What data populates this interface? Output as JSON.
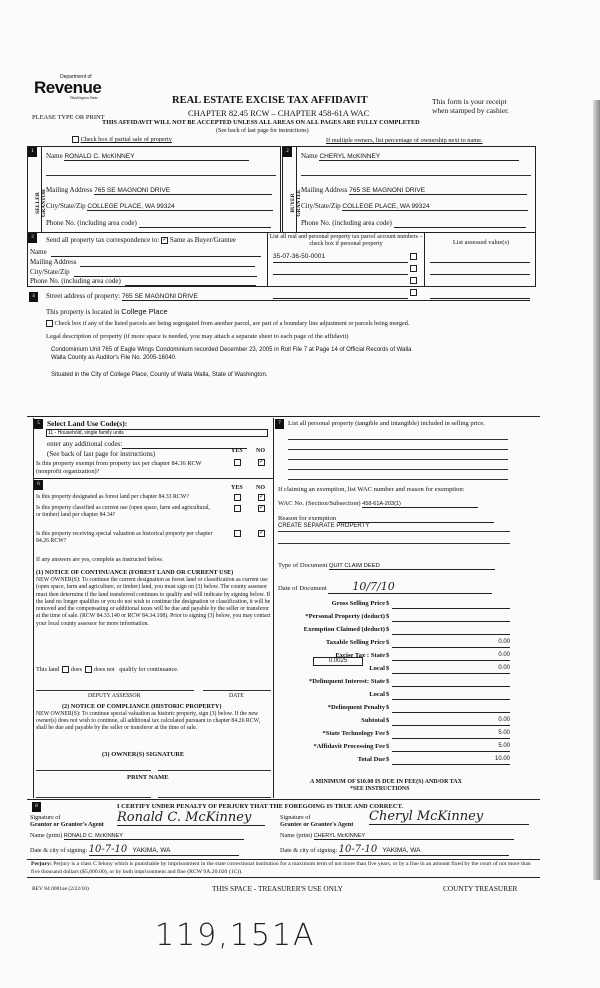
{
  "header": {
    "logo_top": "Department of",
    "logo_main": "Revenue",
    "logo_sub": "Washington State",
    "type_or_print": "PLEASE TYPE OR PRINT",
    "title": "REAL ESTATE EXCISE TAX AFFIDAVIT",
    "chapter": "CHAPTER 82.45 RCW – CHAPTER 458-61A WAC",
    "warning": "THIS AFFIDAVIT WILL NOT BE ACCEPTED UNLESS ALL AREAS ON ALL PAGES ARE FULLY COMPLETED",
    "see_back": "(See back of last page for instructions)",
    "receipt_1": "This form is your receipt",
    "receipt_2": "when stamped by cashier.",
    "partial_sale": "Check box if partial sale of property",
    "multiple_owners": "If multiple owners, list percentage of ownership next to name."
  },
  "seller": {
    "num": "1",
    "side": "SELLER GRANTOR",
    "name_label": "Name",
    "name": "RONALD C. McKINNEY",
    "mail_label": "Mailing Address",
    "mail": "765 SE MAGNONI DRIVE",
    "city_label": "City/State/Zip",
    "city": "COLLEGE PLACE, WA  99324",
    "phone_label": "Phone No. (including area code)"
  },
  "buyer": {
    "num": "2",
    "side": "BUYER GRANTEE",
    "name_label": "Name",
    "name": "CHERYL McKINNEY",
    "mail_label": "Mailing Address",
    "mail": "765 SE MAGNONI DRIVE",
    "city_label": "City/State/Zip",
    "city": "COLLEGE PLACE, WA  99324",
    "phone_label": "Phone No. (including area code)"
  },
  "section3": {
    "num": "3",
    "send_label": "Send all property tax correspondence to:",
    "same_label": "Same as Buyer/Grantee",
    "same_checked": true,
    "name_label": "Name",
    "mail_label": "Mailing Address",
    "city_label": "City/State/Zip",
    "phone_label": "Phone No. (including area code)",
    "parcel_header": "List all real and personal property tax parcel account numbers – check box if personal property",
    "assessed_header": "List assessed value(s)",
    "parcels": [
      "35-07-36-50-0001",
      "",
      "",
      ""
    ]
  },
  "section4": {
    "num": "4",
    "street_label": "Street address of property:",
    "street": "765 SE MAGNONI DRIVE",
    "located_label": "This property is located in",
    "located": "College Place",
    "segregated": "Check box if any of the listed parcels are being segregated from another parcel, are part of a boundary line adjustment or parcels being merged.",
    "legal_label": "Legal description of property (if more space is needed, you may attach a separate sheet to each page of the affidavit)",
    "legal_1": "Condominium Unit 765 of Eagle Wings Condominium recorded December 23, 2005 in Roll File 7 at Page 14 of Official Records of Walla",
    "legal_2": "Walla County as Auditor's File No. 2005-16040.",
    "legal_3": "Situated in the City of College Place, County of Walla Walla, State of Washington."
  },
  "section5": {
    "num": "5",
    "land_use_label": "Select Land Use Code(s):",
    "land_use": "11 - Household, single family units",
    "additional": "enter any additional codes:",
    "see_back": "(See back of last page for instructions)",
    "yes": "YES",
    "no": "NO",
    "exempt_q": "Is this property exempt from property tax per chapter 84.36 RCW (nonprofit organization)?",
    "exempt_no": true
  },
  "section6": {
    "num": "6",
    "yes": "YES",
    "no": "NO",
    "questions": [
      {
        "q": "Is this property designated as forest land per chapter 84.33 RCW?",
        "no": true
      },
      {
        "q": "Is this property classified as current use (open space, farm and agricultural, or timber) land per chapter 84.34?",
        "no": true
      },
      {
        "q": "Is this property receiving special valuation as historical property per chapter 84.26 RCW?",
        "no": true
      }
    ],
    "if_yes": "If any answers are yes, complete as instructed below.",
    "notice1_title": "(1) NOTICE OF CONTINUANCE  (FOREST LAND OR CURRENT USE)",
    "notice1_text": "NEW OWNER(S): To continue the current designation as forest land or classification as current use (open space, farm and agriculture, or timber) land, you must sign on (3) below. The county assessor must then determine if the land transferred continues to qualify and will indicate by signing below. If the land no longer qualifies or you do not wish to continue the designation or classification, it will be removed and the compensating or additional taxes will be due and payable by the seller or transferor at the time of sale. (RCW 84.33.140 or RCW 84.34.108). Prior to signing (3) below, you may contact your local county assessor for more information.",
    "this_land": "This land",
    "does": "does",
    "does_not": "does not",
    "qualify": "qualify for continuance.",
    "deputy": "DEPUTY ASSESSOR",
    "date": "DATE",
    "notice2_title": "(2) NOTICE OF COMPLIANCE (HISTORIC PROPERTY)",
    "notice2_text": "NEW OWNER(S): To continue special valuation as historic property, sign (3) below. If the new owner(s) does not wish to continue, all additional tax calculated pursuant to chapter 84.26 RCW, shall be due and payable by the seller or transferor at the time of sale.",
    "owner_sig": "(3)  OWNER(S) SIGNATURE",
    "print_name": "PRINT NAME"
  },
  "section7": {
    "num": "7",
    "personal_label": "List all  personal property (tangible and intangible) included in selling price.",
    "exemption_label": "If claiming an exemption, list WAC number and reason for exemption:",
    "wac_label": "WAC No. (Section/Subsection)",
    "wac": "458-61A-203(1)",
    "reason_label": "Reason for exemption",
    "reason": "CREATE SEPARATE PROPERTY",
    "doc_type_label": "Type of Document",
    "doc_type": "QUIT CLAIM DEED",
    "doc_date_label": "Date of Document",
    "doc_date": "10/7/10",
    "local_rate": "0.0025",
    "amounts": [
      {
        "label": "Gross Selling Price",
        "value": ""
      },
      {
        "label": "*Personal Property (deduct)",
        "value": ""
      },
      {
        "label": "Exemption Claimed (deduct)",
        "value": ""
      },
      {
        "label": "Taxable Selling Price",
        "value": "0.00"
      },
      {
        "label": "Excise Tax : State",
        "value": "0.00"
      },
      {
        "label": "Local",
        "value": "0.00"
      },
      {
        "label": "*Delinquent Interest: State",
        "value": ""
      },
      {
        "label": "Local",
        "value": ""
      },
      {
        "label": "*Delinquent Penalty",
        "value": ""
      },
      {
        "label": "Subtotal",
        "value": "0.00"
      },
      {
        "label": "*State Technology Fee",
        "value": "5.00"
      },
      {
        "label": "*Affidavit Processing Fee",
        "value": "5.00"
      },
      {
        "label": "Total Due",
        "value": "10.00"
      }
    ],
    "currency": "$",
    "minimum": "A MINIMUM OF $10.00 IS DUE IN FEE(S) AND/OR TAX",
    "see_instr": "*SEE INSTRUCTIONS"
  },
  "section8": {
    "num": "8",
    "certify": "I CERTIFY UNDER PENALTY OF PERJURY THAT THE FOREGOING IS TRUE AND CORRECT.",
    "grantor_sig_1": "Signature of",
    "grantor_sig_2": "Grantor or Grantor's Agent",
    "grantor_signature": "Ronald C. McKinney",
    "name_print": "Name (print)",
    "grantor_name": "RONALD C. McKINNEY",
    "date_city": "Date & city of signing:",
    "grantor_date": "10-7-10",
    "grantor_city": "YAKIMA, WA",
    "grantee_sig_1": "Signature of",
    "grantee_sig_2": "Grantee or Grantee's Agent",
    "grantee_signature": "Cheryl McKinney",
    "grantee_name": "CHERYL McKINNEY",
    "grantee_date": "10-7-10",
    "grantee_city": "YAKIMA, WA"
  },
  "perjury": {
    "label": "Perjury:",
    "text": "Perjury is a class C felony which is punishable by imprisonment in the state correctional institution for a maximum term of not more than five years, or by a fine in an amount fixed by the court of not more than five thousand dollars ($5,000.00), or by both imprisonment and fine (RCW 9A.20.020 (1C))."
  },
  "footer": {
    "rev": "REV 84 0001ae (2/22/10)",
    "treasurer_only": "THIS SPACE - TREASURER'S USE ONLY",
    "county_treasurer": "COUNTY TREASURER",
    "handwritten": "119,151A"
  }
}
